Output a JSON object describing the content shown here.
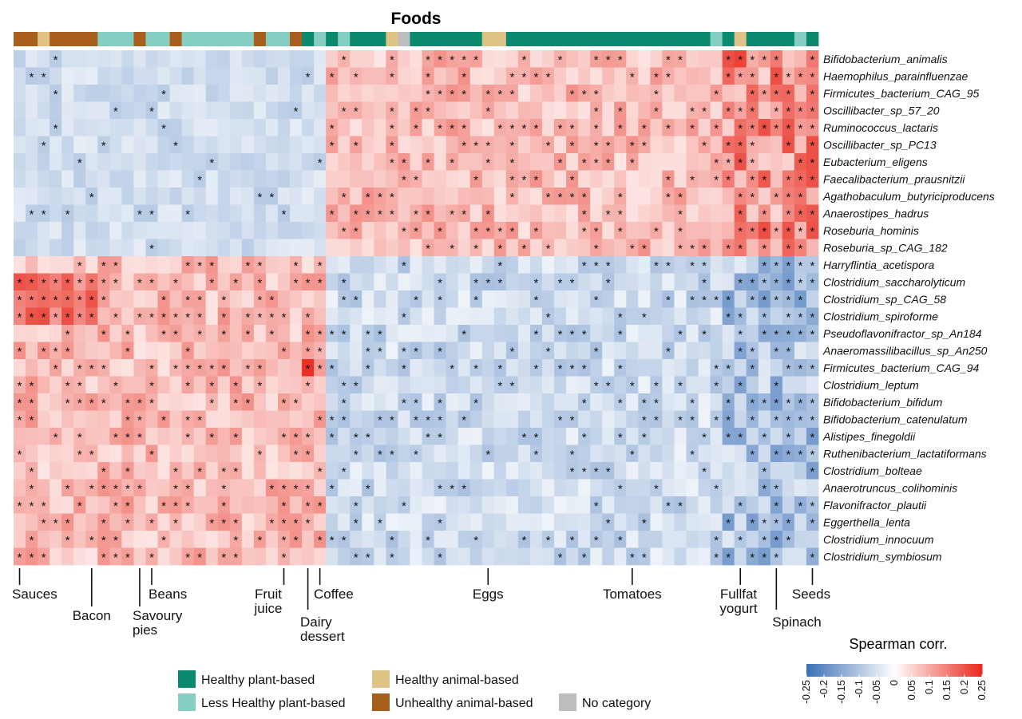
{
  "chart_data": {
    "type": "heatmap",
    "title": "Foods",
    "n_foods": 67,
    "food_categories": [
      "U",
      "U",
      "A",
      "U",
      "U",
      "U",
      "U",
      "L",
      "L",
      "L",
      "U",
      "L",
      "L",
      "U",
      "L",
      "L",
      "L",
      "L",
      "L",
      "L",
      "U",
      "L",
      "L",
      "U",
      "H",
      "L",
      "H",
      "L",
      "H",
      "H",
      "H",
      "A",
      "N",
      "H",
      "H",
      "H",
      "H",
      "H",
      "H",
      "A",
      "A",
      "H",
      "H",
      "H",
      "H",
      "H",
      "H",
      "H",
      "H",
      "H",
      "H",
      "H",
      "H",
      "H",
      "H",
      "H",
      "H",
      "H",
      "L",
      "H",
      "A",
      "H",
      "H",
      "H",
      "H",
      "L",
      "H"
    ],
    "category_colors": {
      "H": "#0b8a6f",
      "L": "#85cfc2",
      "A": "#e0c386",
      "U": "#a85e1c",
      "N": "#bdbdbd"
    },
    "species": [
      "Bifidobacterium_animalis",
      "Haemophilus_parainfluenzae",
      "Firmicutes_bacterium_CAG_95",
      "Oscillibacter_sp_57_20",
      "Ruminococcus_lactaris",
      "Oscillibacter_sp_PC13",
      "Eubacterium_eligens",
      "Faecalibacterium_prausnitzii",
      "Agathobaculum_butyriciproducens",
      "Anaerostipes_hadrus",
      "Roseburia_hominis",
      "Roseburia_sp_CAG_182",
      "Harryflintia_acetispora",
      "Clostridium_saccharolyticum",
      "Clostridium_sp_CAG_58",
      "Clostridium_spiroforme",
      "Pseudoflavonifractor_sp_An184",
      "Anaeromassilibacillus_sp_An250",
      "Firmicutes_bacterium_CAG_94",
      "Clostridium_leptum",
      "Bifidobacterium_bifidum",
      "Bifidobacterium_catenulatum",
      "Alistipes_finegoldii",
      "Ruthenibacterium_lactatiformans",
      "Clostridium_bolteae",
      "Anaerotruncus_colihominis",
      "Flavonifractor_plautii",
      "Eggerthella_lenta",
      "Clostridium_innocuum",
      "Clostridium_symbiosum"
    ],
    "n_positive_species": 12,
    "split_column": 26,
    "correlation_range": [
      -0.25,
      0.25
    ],
    "colorscale": [
      "#3a6fb7",
      "#ffffff",
      "#e8291c"
    ],
    "significance_marker": "*",
    "annotations": [
      {
        "label": "Sauces",
        "col": 0,
        "lines": [
          "Sauces"
        ],
        "drop": 0
      },
      {
        "label": "Bacon",
        "col": 6,
        "lines": [
          "Bacon"
        ],
        "drop": 1
      },
      {
        "label": "Savoury pies",
        "col": 10,
        "lines": [
          "Savoury",
          "pies"
        ],
        "drop": 1
      },
      {
        "label": "Beans",
        "col": 11,
        "lines": [
          "Beans"
        ],
        "drop": 0
      },
      {
        "label": "Fruit juice",
        "col": 22,
        "lines": [
          "Fruit",
          "juice"
        ],
        "drop": 0
      },
      {
        "label": "Dairy dessert",
        "col": 24,
        "lines": [
          "Dairy",
          "dessert"
        ],
        "drop": 2
      },
      {
        "label": "Coffee",
        "col": 25,
        "lines": [
          "Coffee"
        ],
        "drop": 0
      },
      {
        "label": "Eggs",
        "col": 39,
        "lines": [
          "Eggs"
        ],
        "drop": 0
      },
      {
        "label": "Tomatoes",
        "col": 51,
        "lines": [
          "Tomatoes"
        ],
        "drop": 0
      },
      {
        "label": "Fullfat yogurt",
        "col": 60,
        "lines": [
          "Fullfat",
          "yogurt"
        ],
        "drop": 0
      },
      {
        "label": "Spinach",
        "col": 63,
        "lines": [
          "Spinach"
        ],
        "drop": 3
      },
      {
        "label": "Seeds",
        "col": 66,
        "lines": [
          "Seeds"
        ],
        "drop": 0
      }
    ],
    "legend": {
      "categories": [
        {
          "key": "H",
          "label": "Healthy plant-based"
        },
        {
          "key": "A",
          "label": "Healthy animal-based"
        },
        {
          "key": "L",
          "label": "Less Healthy plant-based"
        },
        {
          "key": "U",
          "label": "Unhealthy animal-based"
        },
        {
          "key": "N",
          "label": "No category"
        }
      ],
      "colorbar_title": "Spearman corr.",
      "colorbar_ticks": [
        "-0.25",
        "-0.2",
        "-0.15",
        "-0.1",
        "-0.05",
        "0",
        "0.05",
        "0.1",
        "0.15",
        "0.2",
        "0.25"
      ]
    }
  }
}
